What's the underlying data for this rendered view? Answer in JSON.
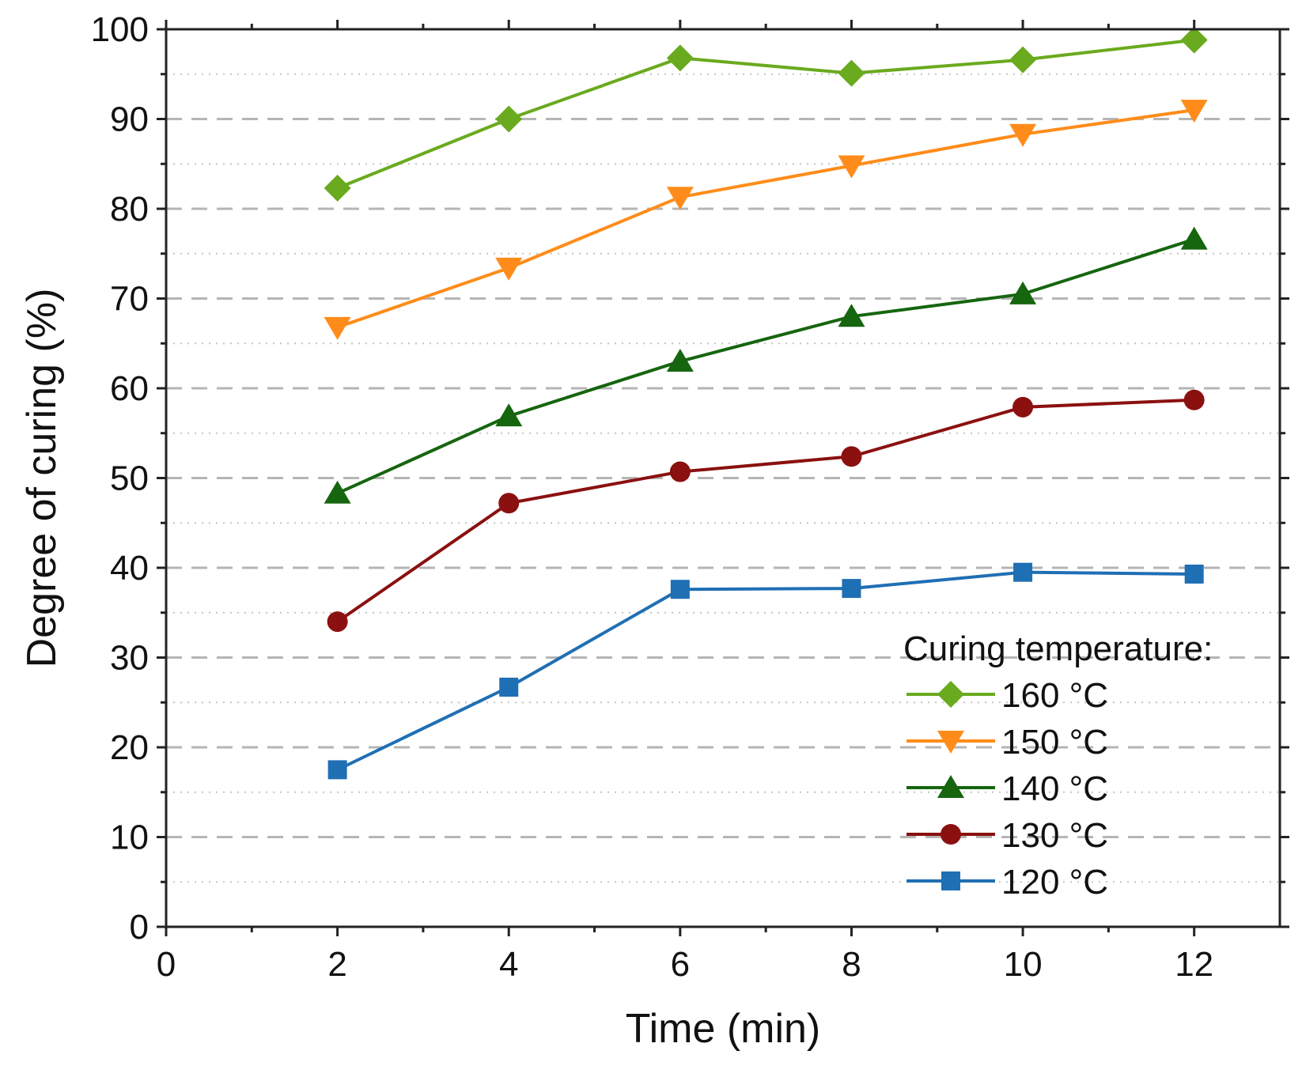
{
  "chart_data": {
    "type": "line",
    "title": "",
    "xlabel": "Time (min)",
    "ylabel": "Degree of curing (%)",
    "xlim": [
      0,
      13
    ],
    "ylim": [
      0,
      100
    ],
    "x_ticks": [
      0,
      2,
      4,
      6,
      8,
      10,
      12
    ],
    "y_ticks": [
      0,
      10,
      20,
      30,
      40,
      50,
      60,
      70,
      80,
      90,
      100
    ],
    "grid": {
      "major_y": "dashed",
      "minor_y": "dotted"
    },
    "legend": {
      "title": "Curing temperature:",
      "position": "bottom-right"
    },
    "x": [
      2,
      4,
      6,
      8,
      10,
      12
    ],
    "series": [
      {
        "name": "160 °C",
        "color": "#6aaa1e",
        "marker": "diamond",
        "values": [
          82.3,
          90.0,
          96.8,
          95.1,
          96.6,
          98.8
        ]
      },
      {
        "name": "150 °C",
        "color": "#ff8c1a",
        "marker": "triangle-down",
        "values": [
          66.8,
          73.4,
          81.3,
          84.8,
          88.3,
          91.0
        ]
      },
      {
        "name": "140 °C",
        "color": "#16650f",
        "marker": "triangle-up",
        "values": [
          48.3,
          56.9,
          63.0,
          68.0,
          70.5,
          76.6
        ]
      },
      {
        "name": "130 °C",
        "color": "#8b1010",
        "marker": "circle",
        "values": [
          34.0,
          47.2,
          50.7,
          52.4,
          57.9,
          58.7
        ]
      },
      {
        "name": "120 °C",
        "color": "#1f6fb4",
        "marker": "square",
        "values": [
          17.5,
          26.7,
          37.6,
          37.7,
          39.5,
          39.3
        ]
      }
    ]
  }
}
